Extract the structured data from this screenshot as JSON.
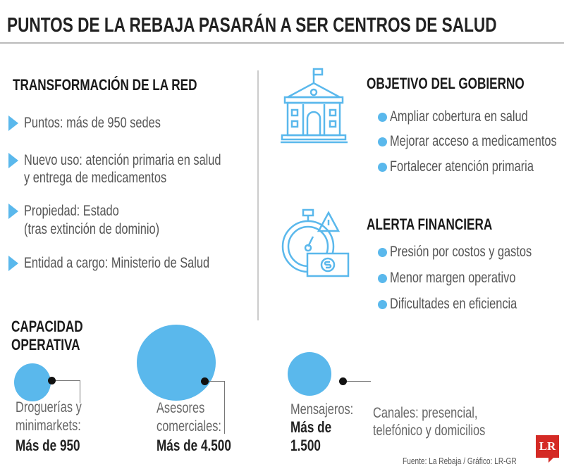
{
  "title": "PUNTOS DE LA REBAJA PASARÁN A SER CENTROS DE SALUD",
  "transformacion": {
    "heading": "TRANSFORMACIÓN DE LA RED",
    "items": [
      {
        "lines": [
          "Puntos: más de 950 sedes"
        ]
      },
      {
        "lines": [
          "Nuevo uso: atención primaria en salud",
          "y entrega de medicamentos"
        ]
      },
      {
        "lines": [
          "Propiedad: Estado",
          "(tras extinción de dominio)"
        ]
      },
      {
        "lines": [
          "Entidad a cargo: Ministerio de Salud"
        ]
      }
    ]
  },
  "objetivo": {
    "icon": "government-building-icon",
    "heading": "OBJETIVO DEL GOBIERNO",
    "items": [
      "Ampliar cobertura en salud",
      "Mejorar acceso a medicamentos",
      "Fortalecer atención primaria"
    ]
  },
  "alerta": {
    "icon": "stopwatch-money-warning-icon",
    "heading": "ALERTA FINANCIERA",
    "items": [
      "Presión por costos y gastos",
      "Menor margen operativo",
      "Dificultades en eficiencia"
    ]
  },
  "capacidad": {
    "heading_lines": [
      "CAPACIDAD",
      "OPERATIVA"
    ],
    "bubbles": [
      {
        "label_lines": [
          "Droguerías y",
          "minimarkets:"
        ],
        "value": "Más de 950",
        "amount": 950
      },
      {
        "label_lines": [
          "Asesores",
          "comerciales:"
        ],
        "value": "Más de 4.500",
        "amount": 4500
      },
      {
        "label_lines": [
          "Mensajeros:"
        ],
        "value_lines": [
          "Más de",
          "1.500"
        ],
        "amount": 1500
      }
    ],
    "canales_lines": [
      "Canales: presencial,",
      "telefónico y domicilios"
    ]
  },
  "source": "Fuente: La Rebaja / Gráfico: LR-GR",
  "logo": "LR",
  "colors": {
    "accent": "#5ab8ec",
    "logo": "#d42a25"
  }
}
